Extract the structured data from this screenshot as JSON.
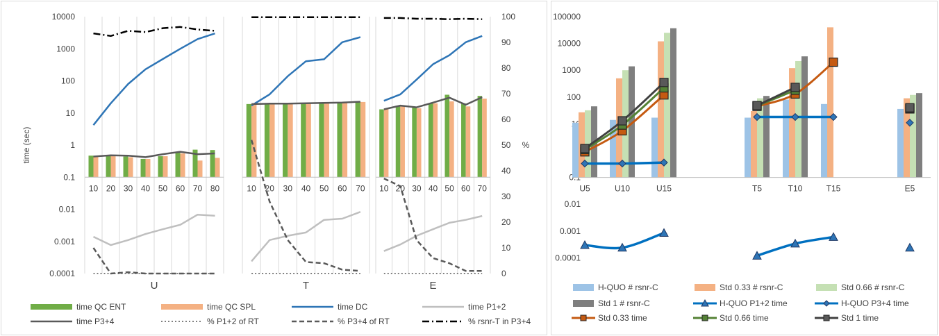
{
  "chart_data": [
    {
      "type": "bar",
      "scale": "log",
      "y_axis_label": "time (sec)",
      "y2_axis_label": "%",
      "ylim": [
        0.0001,
        10000
      ],
      "y_ticks": [
        "10000",
        "1000",
        "100",
        "10",
        "1",
        "0.1",
        "0.01",
        "0.001",
        "0.0001"
      ],
      "y2lim": [
        0,
        100
      ],
      "y2_ticks": [
        "100",
        "90",
        "80",
        "70",
        "60",
        "50",
        "40",
        "30",
        "20",
        "10",
        "0"
      ],
      "groups": [
        {
          "label": "U",
          "categories": [
            "10",
            "20",
            "30",
            "40",
            "50",
            "60",
            "70",
            "80"
          ],
          "bars": {
            "time QC  ENT": [
              0.47,
              0.47,
              0.44,
              0.37,
              0.45,
              0.6,
              0.72,
              0.7
            ],
            "time QC  SPL": [
              0.44,
              0.45,
              0.42,
              0.37,
              0.45,
              0.55,
              0.33,
              0.4
            ]
          },
          "lines": {
            "time DC": [
              4.2,
              20,
              80,
              230,
              480,
              1000,
              2000,
              3000
            ],
            "time P1+2": [
              0.0014,
              0.00077,
              0.0011,
              0.0017,
              0.0024,
              0.0033,
              0.0068,
              0.0063
            ],
            "time P3+4": [
              0.44,
              0.48,
              0.47,
              0.42,
              0.52,
              0.62,
              0.52,
              0.55
            ],
            "% P1+2 of RT": [
              0,
              0,
              0,
              0,
              0,
              0,
              0,
              0
            ],
            "% P3+4 of RT": [
              10,
              0,
              0.5,
              0,
              0,
              0,
              0,
              0
            ],
            "% rsnr-T in P3+4": [
              93.5,
              92.5,
              94.5,
              94,
              95.5,
              96,
              95,
              94.5
            ]
          }
        },
        {
          "label": "T",
          "categories": [
            "10",
            "20",
            "30",
            "40",
            "50",
            "60",
            "70"
          ],
          "bars": {
            "time QC  ENT": [
              19,
              19.5,
              19.5,
              19.5,
              20,
              20.5,
              22
            ],
            "time QC  SPL": [
              19,
              19.5,
              19.5,
              19.5,
              20,
              20.5,
              22
            ]
          },
          "lines": {
            "time DC": [
              17,
              38,
              140,
              410,
              470,
              1600,
              2300
            ],
            "time P1+2": [
              0.00024,
              0.0011,
              0.0015,
              0.0019,
              0.0047,
              0.0051,
              0.0083
            ],
            "time P3+4": [
              19,
              19.5,
              19.5,
              20,
              20.5,
              21,
              22.5
            ],
            "% P1+2 of RT": [
              0,
              0,
              0,
              0,
              0,
              0,
              0
            ],
            "% P3+4 of RT": [
              52,
              28,
              13,
              4.5,
              4,
              1.5,
              1
            ],
            "% rsnr-T in P3+4": [
              99.8,
              99.8,
              99.8,
              99.8,
              99.8,
              99.8,
              99.8
            ]
          }
        },
        {
          "label": "E",
          "categories": [
            "10",
            "20",
            "30",
            "40",
            "50",
            "60",
            "70"
          ],
          "bars": {
            "time QC  ENT": [
              13,
              17,
              15,
              20,
              37,
              20,
              34
            ],
            "time QC  SPL": [
              13,
              17,
              14,
              20,
              23,
              16,
              28
            ]
          },
          "lines": {
            "time DC": [
              24,
              38,
              110,
              330,
              630,
              1600,
              2500
            ],
            "time P1+2": [
              0.0005,
              0.0008,
              0.0015,
              0.0024,
              0.0038,
              0.0047,
              0.0062
            ],
            "time P3+4": [
              13,
              17,
              15,
              21,
              30,
              18,
              31
            ],
            "% P1+2 of RT": [
              0,
              0,
              0,
              0,
              0,
              0,
              0
            ],
            "% P3+4 of RT": [
              37,
              34,
              13,
              6,
              4,
              1,
              1
            ],
            "% rsnr-T in P3+4": [
              99.5,
              99.5,
              99.2,
              99.2,
              99,
              99.2,
              99
            ]
          }
        }
      ],
      "legend": [
        {
          "name": "time QC  ENT",
          "kind": "bar",
          "color": "#70ad47"
        },
        {
          "name": "time QC  SPL",
          "kind": "bar",
          "color": "#f4b183"
        },
        {
          "name": "time DC",
          "kind": "line",
          "color": "#2e75b6"
        },
        {
          "name": "time P1+2",
          "kind": "line",
          "color": "#bfbfbf"
        },
        {
          "name": "time P3+4",
          "kind": "line",
          "color": "#595959"
        },
        {
          "name": "% P1+2 of RT",
          "kind": "dotted",
          "color": "#7f7f7f"
        },
        {
          "name": "% P3+4 of RT",
          "kind": "dashed",
          "color": "#595959"
        },
        {
          "name": "% rsnr-T in P3+4",
          "kind": "dashdot",
          "color": "#000000"
        }
      ]
    },
    {
      "type": "bar",
      "scale": "log",
      "ylim": [
        0.0001,
        100000
      ],
      "y_ticks": [
        "100000",
        "10000",
        "1000",
        "100",
        "10",
        "1",
        "0.1",
        "0.01",
        "0.001",
        "0.0001"
      ],
      "categories": [
        "U5",
        "U10",
        "U15",
        "",
        "T5",
        "T10",
        "T15",
        "",
        "E5"
      ],
      "series": [
        {
          "name": "H-QUO # rsnr-C",
          "kind": "bar",
          "color": "#9dc3e6",
          "values": [
            11,
            14,
            17,
            null,
            17,
            80,
            55,
            null,
            36
          ]
        },
        {
          "name": "Std 0.33 # rsnr-C",
          "kind": "bar",
          "color": "#f4b183",
          "values": [
            27,
            500,
            12000,
            null,
            30,
            1200,
            40000,
            null,
            90
          ]
        },
        {
          "name": "Std 0.66 # rsnr-C",
          "kind": "bar",
          "color": "#c5e0b4",
          "values": [
            32,
            1000,
            25000,
            null,
            90,
            2200,
            null,
            null,
            120
          ]
        },
        {
          "name": "Std 1 # rsnr-C",
          "kind": "bar",
          "color": "#7f7f7f",
          "values": [
            45,
            1400,
            37000,
            null,
            110,
            3300,
            null,
            null,
            140
          ]
        },
        {
          "name": "H-QUO P1+2 time",
          "kind": "line-triangle",
          "color": "#0070c0",
          "values": [
            0.0003,
            0.00024,
            0.00085,
            null,
            0.00012,
            0.00034,
            0.0006,
            null,
            0.00024
          ]
        },
        {
          "name": "H-QUO P3+4 time",
          "kind": "line-diamond",
          "color": "#0070c0",
          "values": [
            0.33,
            0.33,
            0.36,
            null,
            18,
            18,
            18,
            null,
            11
          ]
        },
        {
          "name": "Std 0.33 time",
          "kind": "line-square",
          "color": "#c55a11",
          "values": [
            0.9,
            5.5,
            120,
            null,
            45,
            130,
            2000,
            null,
            36
          ]
        },
        {
          "name": "Std 0.66 time",
          "kind": "line-square",
          "color": "#548235",
          "values": [
            1.1,
            9,
            220,
            null,
            47,
            180,
            null,
            null,
            38
          ]
        },
        {
          "name": "Std 1 time",
          "kind": "line-square",
          "color": "#404040",
          "values": [
            1.2,
            13,
            350,
            null,
            48,
            230,
            null,
            null,
            40
          ]
        }
      ]
    }
  ]
}
